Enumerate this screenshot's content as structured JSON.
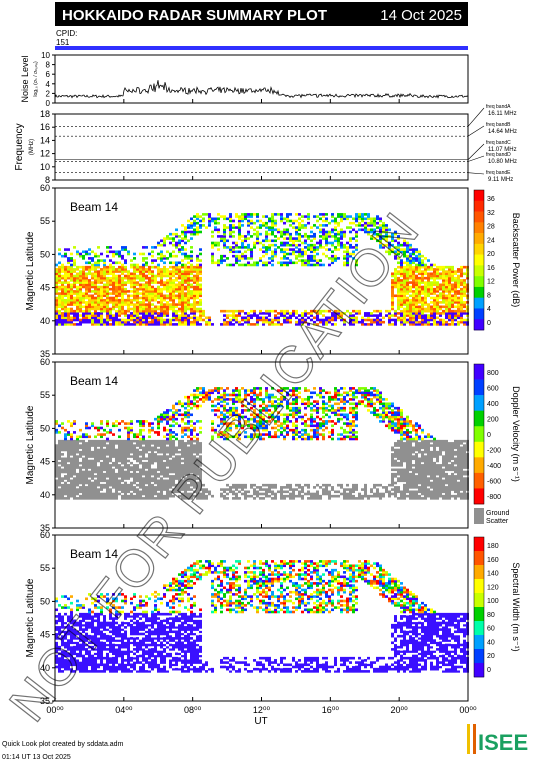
{
  "header": {
    "title": "HOKKAIDO RADAR SUMMARY PLOT",
    "date": "14 Oct 2025",
    "cpid_label": "CPID:",
    "cpid_value": "151"
  },
  "noise": {
    "ylabel": "Noise Level",
    "ylabel_sub": "log₁₀ (σₛ / σₙ₀ₙₑ)",
    "yticks": [
      "10",
      "8",
      "6",
      "4",
      "2",
      "0"
    ],
    "ylim": [
      0,
      10
    ]
  },
  "frequency": {
    "ylabel": "Frequency",
    "ylabel_unit": "(MHz)",
    "yticks": [
      "18",
      "16",
      "14",
      "12",
      "10",
      "8"
    ],
    "ylim": [
      8,
      18
    ],
    "bands": [
      {
        "name": "freq bandA",
        "value": "16.11 MHz",
        "mhz": 16.11
      },
      {
        "name": "freq bandB",
        "value": "14.64 MHz",
        "mhz": 14.64
      },
      {
        "name": "freq bandC",
        "value": "11.07 MHz",
        "mhz": 11.07
      },
      {
        "name": "freq bandD",
        "value": "10.80 MHz",
        "mhz": 10.8
      },
      {
        "name": "freq bandE",
        "value": "9.11 MHz",
        "mhz": 9.11
      }
    ]
  },
  "panels": [
    {
      "beam_label": "Beam 14",
      "ylabel": "Magnetic Latitude",
      "yticks": [
        "60",
        "55",
        "50",
        "45",
        "40",
        "35"
      ],
      "colorbar_title": "Backscatter Power (dB)",
      "colorbar_ticks": [
        "36",
        "32",
        "28",
        "24",
        "20",
        "16",
        "12",
        "8",
        "4",
        "0"
      ],
      "colorbar_colors": [
        "#ff0000",
        "#ff2a00",
        "#ff5500",
        "#ff8000",
        "#ffaa00",
        "#ffd400",
        "#ffff00",
        "#c8ff00",
        "#80ff00",
        "#00d000",
        "#00a0ff",
        "#0040ff",
        "#4000ff"
      ]
    },
    {
      "beam_label": "Beam 14",
      "ylabel": "Magnetic Latitude",
      "yticks": [
        "60",
        "55",
        "50",
        "45",
        "40",
        "35"
      ],
      "colorbar_title": "Doppler Velocity (m s⁻¹)",
      "colorbar_ticks": [
        "800",
        "600",
        "400",
        "200",
        "0",
        "-200",
        "-400",
        "-600",
        "-800"
      ],
      "colorbar_colors": [
        "#4000ff",
        "#0040ff",
        "#00a0ff",
        "#00d000",
        "#80ff00",
        "#ffff00",
        "#ffaa00",
        "#ff6000",
        "#ff0000"
      ],
      "ground_scatter_label_1": "Ground",
      "ground_scatter_label_2": "Scatter",
      "ground_scatter_color": "#909090"
    },
    {
      "beam_label": "Beam 14",
      "ylabel": "Magnetic Latitude",
      "yticks": [
        "60",
        "55",
        "50",
        "45",
        "40",
        "35"
      ],
      "colorbar_title": "Spectral Width (m s⁻¹)",
      "colorbar_ticks": [
        "180",
        "160",
        "140",
        "120",
        "100",
        "80",
        "60",
        "40",
        "20",
        "0"
      ],
      "colorbar_colors": [
        "#ff0000",
        "#ff5500",
        "#ffaa00",
        "#ffff00",
        "#c8ff00",
        "#00d000",
        "#00ffaa",
        "#00a0ff",
        "#0040ff",
        "#4000ff"
      ]
    }
  ],
  "xaxis": {
    "ticks": [
      "00⁰⁰",
      "04⁰⁰",
      "08⁰⁰",
      "12⁰⁰",
      "16⁰⁰",
      "20⁰⁰",
      "00⁰⁰"
    ],
    "label": "UT"
  },
  "footer": {
    "line1": "Quick Look plot created by sddata.adm",
    "line2": "01:14 UT 13 Oct 2025",
    "logo_text": "ISEE"
  },
  "watermark": "NOT FOR PUBLICATION",
  "chart_data": {
    "type": "heatmap",
    "x": "UT hours 0–24",
    "ylim": [
      35,
      60
    ],
    "noise_ylim": [
      0,
      10
    ],
    "frequency_ylim": [
      8,
      18
    ]
  }
}
